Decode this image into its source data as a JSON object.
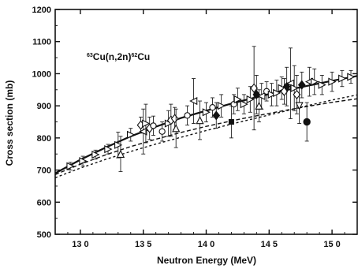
{
  "chart_data": {
    "type": "scatter",
    "title": "",
    "xlabel": "Neutron Energy (MeV)",
    "ylabel": "Cross section (mb)",
    "xlim": [
      12.8,
      15.2
    ],
    "ylim": [
      500,
      1200
    ],
    "xticks": [
      13.0,
      13.5,
      14.0,
      14.5,
      15.0
    ],
    "xtick_labels": [
      "13 0",
      "13 5",
      "14 0",
      "14 5",
      "15 0"
    ],
    "yticks": [
      500,
      600,
      700,
      800,
      900,
      1000,
      1100,
      1200
    ],
    "ytick_labels": [
      "500",
      "600",
      "700",
      "800",
      "900",
      "1000",
      "1100",
      "1200"
    ],
    "grid": false,
    "annotation": {
      "mass_a": "63",
      "body_a": "Cu(n,2n)",
      "mass_b": "62",
      "body_b": "Cu"
    },
    "curves": [
      {
        "style": "solid",
        "x": [
          12.8,
          13.0,
          13.2,
          13.4,
          13.6,
          13.8,
          14.0,
          14.2,
          14.4,
          14.6,
          14.8,
          15.0,
          15.2
        ],
        "y": [
          690,
          732,
          770,
          805,
          835,
          862,
          885,
          907,
          927,
          946,
          962,
          978,
          993
        ]
      },
      {
        "style": "dashed",
        "x": [
          12.8,
          13.0,
          13.2,
          13.4,
          13.6,
          13.8,
          14.0,
          14.2,
          14.4,
          14.6,
          14.8,
          15.0,
          15.2
        ],
        "y": [
          686,
          718,
          747,
          773,
          796,
          817,
          836,
          853,
          869,
          884,
          898,
          911,
          922
        ]
      },
      {
        "style": "dashed",
        "x": [
          12.8,
          13.0,
          13.2,
          13.4,
          13.6,
          13.8,
          14.0,
          14.2,
          14.4,
          14.6,
          14.8,
          15.0,
          15.2
        ],
        "y": [
          676,
          706,
          733,
          758,
          781,
          802,
          823,
          843,
          862,
          881,
          900,
          918,
          934
        ]
      }
    ],
    "points": [
      {
        "x": 12.92,
        "y": 712,
        "err": 12,
        "marker": "tri-right"
      },
      {
        "x": 13.02,
        "y": 728,
        "err": 15,
        "marker": "tri-right"
      },
      {
        "x": 13.12,
        "y": 748,
        "err": 14,
        "marker": "tri-right"
      },
      {
        "x": 13.22,
        "y": 765,
        "err": 15,
        "marker": "tri-right"
      },
      {
        "x": 13.3,
        "y": 778,
        "err": 40,
        "marker": "tri-right"
      },
      {
        "x": 13.32,
        "y": 750,
        "err": 55,
        "marker": "tri-up"
      },
      {
        "x": 13.4,
        "y": 810,
        "err": 20,
        "marker": "tri-right"
      },
      {
        "x": 13.48,
        "y": 840,
        "err": 25,
        "marker": "diamond"
      },
      {
        "x": 13.5,
        "y": 820,
        "err": 70,
        "marker": "tri-left"
      },
      {
        "x": 13.52,
        "y": 845,
        "err": 60,
        "marker": "tri-right"
      },
      {
        "x": 13.55,
        "y": 830,
        "err": 35,
        "marker": "diamond"
      },
      {
        "x": 13.58,
        "y": 838,
        "err": 30,
        "marker": "circle"
      },
      {
        "x": 13.65,
        "y": 820,
        "err": 30,
        "marker": "circle"
      },
      {
        "x": 13.7,
        "y": 845,
        "err": 40,
        "marker": "tri-right"
      },
      {
        "x": 13.72,
        "y": 855,
        "err": 50,
        "marker": "diamond"
      },
      {
        "x": 13.75,
        "y": 860,
        "err": 35,
        "marker": "diamond"
      },
      {
        "x": 13.76,
        "y": 830,
        "err": 60,
        "marker": "tri-up"
      },
      {
        "x": 13.85,
        "y": 870,
        "err": 30,
        "marker": "circle"
      },
      {
        "x": 13.9,
        "y": 915,
        "err": 70,
        "marker": "tri-left"
      },
      {
        "x": 13.95,
        "y": 855,
        "err": 60,
        "marker": "tri-up"
      },
      {
        "x": 14.0,
        "y": 880,
        "err": 30,
        "marker": "tri-right"
      },
      {
        "x": 14.05,
        "y": 895,
        "err": 30,
        "marker": "circle"
      },
      {
        "x": 14.08,
        "y": 870,
        "err": 40,
        "marker": "diamond-filled"
      },
      {
        "x": 14.12,
        "y": 900,
        "err": 35,
        "marker": "tri-right"
      },
      {
        "x": 14.2,
        "y": 850,
        "err": 50,
        "marker": "square-filled"
      },
      {
        "x": 14.22,
        "y": 905,
        "err": 30,
        "marker": "circle"
      },
      {
        "x": 14.25,
        "y": 920,
        "err": 35,
        "marker": "tri-right"
      },
      {
        "x": 14.3,
        "y": 905,
        "err": 30,
        "marker": "tri-right"
      },
      {
        "x": 14.35,
        "y": 920,
        "err": 40,
        "marker": "tri-right"
      },
      {
        "x": 14.38,
        "y": 955,
        "err": 130,
        "marker": "diamond"
      },
      {
        "x": 14.4,
        "y": 935,
        "err": 60,
        "marker": "diamond-filled"
      },
      {
        "x": 14.42,
        "y": 900,
        "err": 50,
        "marker": "tri-up"
      },
      {
        "x": 14.44,
        "y": 930,
        "err": 40,
        "marker": "tri-left"
      },
      {
        "x": 14.48,
        "y": 945,
        "err": 30,
        "marker": "circle"
      },
      {
        "x": 14.52,
        "y": 935,
        "err": 35,
        "marker": "tri-right"
      },
      {
        "x": 14.56,
        "y": 940,
        "err": 40,
        "marker": "tri-right"
      },
      {
        "x": 14.6,
        "y": 955,
        "err": 35,
        "marker": "tri-right"
      },
      {
        "x": 14.62,
        "y": 945,
        "err": 40,
        "marker": "diamond"
      },
      {
        "x": 14.64,
        "y": 960,
        "err": 60,
        "marker": "diamond-filled"
      },
      {
        "x": 14.67,
        "y": 970,
        "err": 110,
        "marker": "tri-left"
      },
      {
        "x": 14.7,
        "y": 955,
        "err": 70,
        "marker": "tri-right"
      },
      {
        "x": 14.72,
        "y": 935,
        "err": 60,
        "marker": "diamond"
      },
      {
        "x": 14.74,
        "y": 900,
        "err": 55,
        "marker": "tri-down"
      },
      {
        "x": 14.76,
        "y": 965,
        "err": 40,
        "marker": "diamond-filled"
      },
      {
        "x": 14.8,
        "y": 850,
        "err": 60,
        "marker": "circle-filled"
      },
      {
        "x": 14.82,
        "y": 975,
        "err": 45,
        "marker": "tri-left"
      },
      {
        "x": 14.86,
        "y": 975,
        "err": 40,
        "marker": "tri-right"
      },
      {
        "x": 14.92,
        "y": 965,
        "err": 30,
        "marker": "tri-right"
      },
      {
        "x": 15.0,
        "y": 975,
        "err": 30,
        "marker": "tri-right"
      },
      {
        "x": 15.08,
        "y": 985,
        "err": 25,
        "marker": "tri-right"
      },
      {
        "x": 15.15,
        "y": 990,
        "err": 20,
        "marker": "tri-right"
      }
    ]
  }
}
